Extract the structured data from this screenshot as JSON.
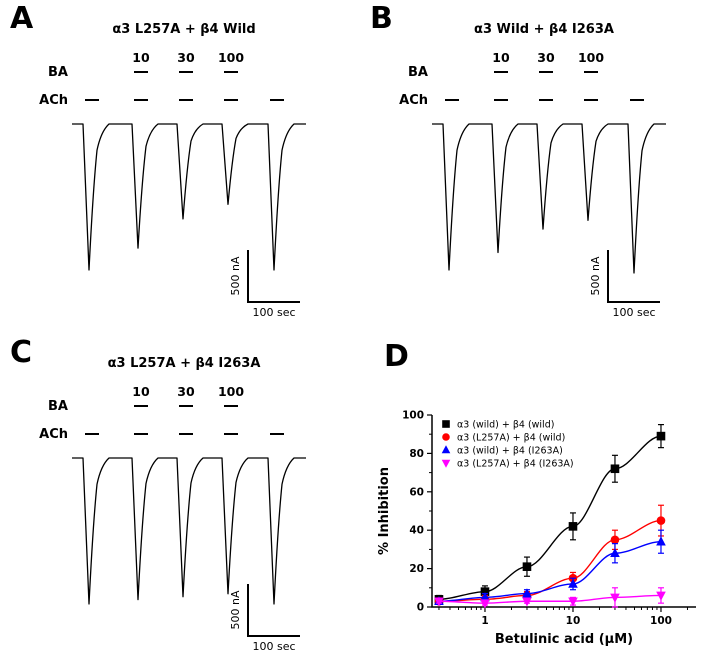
{
  "figure": {
    "panels": [
      {
        "letter": "A",
        "title": "α3 L257A + β4 Wild",
        "ba_label": "BA",
        "ach_label": "ACh",
        "ba_concentrations": [
          "10",
          "30",
          "100"
        ],
        "ach_pulses": 5,
        "scale_current": "500 nA",
        "scale_time": "100 sec",
        "relative_amplitudes": [
          1.0,
          0.85,
          0.65,
          0.55,
          1.0
        ]
      },
      {
        "letter": "B",
        "title": "α3 Wild + β4 I263A",
        "ba_label": "BA",
        "ach_label": "ACh",
        "ba_concentrations": [
          "10",
          "30",
          "100"
        ],
        "ach_pulses": 5,
        "scale_current": "500 nA",
        "scale_time": "100 sec",
        "relative_amplitudes": [
          1.0,
          0.88,
          0.72,
          0.66,
          1.02
        ]
      },
      {
        "letter": "C",
        "title": "α3 L257A + β4 I263A",
        "ba_label": "BA",
        "ach_label": "ACh",
        "ba_concentrations": [
          "10",
          "30",
          "100"
        ],
        "ach_pulses": 5,
        "scale_current": "500 nA",
        "scale_time": "100 sec",
        "relative_amplitudes": [
          1.0,
          0.97,
          0.95,
          0.93,
          1.0
        ]
      }
    ]
  },
  "chart_data": {
    "type": "scatter",
    "panel_letter": "D",
    "xlabel": "Betulinic acid (μM)",
    "ylabel": "% Inhibition",
    "xscale": "log",
    "xlim": [
      0.25,
      250
    ],
    "ylim": [
      0,
      100
    ],
    "xticks": [
      1,
      10,
      100
    ],
    "yticks": [
      0,
      20,
      40,
      60,
      80,
      100
    ],
    "legend_position": "top-left",
    "x": [
      0.3,
      1,
      3,
      10,
      30,
      100
    ],
    "series": [
      {
        "name": "α3 (wild) + β4 (wild)",
        "marker": "square",
        "color": "#000000",
        "values": [
          4,
          8,
          21,
          42,
          72,
          89
        ],
        "errors": [
          2,
          3,
          5,
          7,
          7,
          6
        ]
      },
      {
        "name": "α3 (L257A) + β4 (wild)",
        "marker": "circle",
        "color": "#ff0000",
        "values": [
          3,
          4,
          6,
          15,
          35,
          45
        ],
        "errors": [
          1,
          2,
          2,
          3,
          5,
          8
        ]
      },
      {
        "name": "α3 (wild) + β4 (I263A)",
        "marker": "triangle-up",
        "color": "#0000ff",
        "values": [
          3,
          5,
          7,
          12,
          28,
          34
        ],
        "errors": [
          1,
          2,
          2,
          3,
          5,
          6
        ]
      },
      {
        "name": "α3 (L257A) + β4 (I263A)",
        "marker": "triangle-down",
        "color": "#ff00ff",
        "values": [
          3,
          2,
          3,
          3,
          5,
          6
        ],
        "errors": [
          1,
          1,
          1,
          2,
          5,
          4
        ]
      }
    ]
  }
}
